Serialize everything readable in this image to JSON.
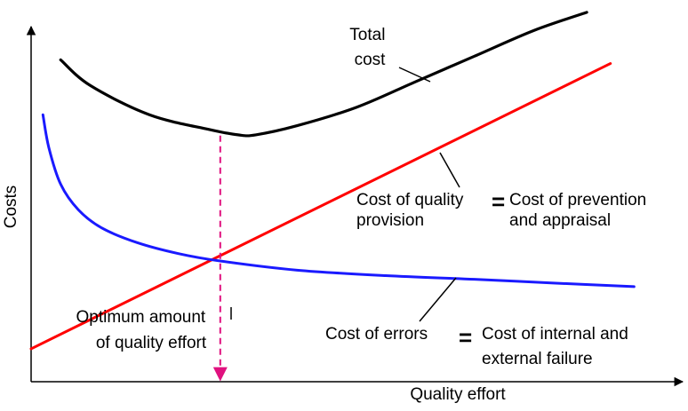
{
  "chart_data": {
    "type": "line",
    "xlabel": "Quality effort",
    "ylabel": "Costs",
    "xlim": [
      0,
      100
    ],
    "ylim": [
      0,
      100
    ],
    "grid": false,
    "series": [
      {
        "name": "Total cost",
        "color": "#000000",
        "x": [
          5,
          10,
          20,
          30,
          35,
          38,
          45,
          55,
          65,
          75,
          85,
          94
        ],
        "y": [
          88,
          81,
          73,
          69,
          67.5,
          67.5,
          70,
          75,
          82,
          89,
          96,
          101
        ]
      },
      {
        "name": "Cost of quality provision",
        "color": "#ff0000",
        "x": [
          0,
          98
        ],
        "y": [
          9,
          87
        ]
      },
      {
        "name": "Cost of errors",
        "color": "#1a1aff",
        "x": [
          2,
          3,
          5,
          8,
          12,
          18,
          25,
          32,
          45,
          60,
          75,
          88,
          102
        ],
        "y": [
          73,
          64,
          54,
          47,
          42,
          38,
          35,
          33,
          30.5,
          29,
          28,
          27,
          26
        ]
      }
    ],
    "optimum": {
      "x": 32,
      "y": 33,
      "label": "Optimum amount of quality effort"
    },
    "annotations": {
      "total_cost": [
        "Total",
        "cost"
      ],
      "quality_provision": [
        "Cost of quality",
        "provision"
      ],
      "prevention": [
        "Cost of prevention",
        "and appraisal"
      ],
      "errors": [
        "Cost of errors"
      ],
      "internal_external": [
        "Cost of internal and",
        "external failure"
      ],
      "optimum": [
        "Optimum amount",
        "of quality effort"
      ],
      "equals_sign": "="
    }
  }
}
